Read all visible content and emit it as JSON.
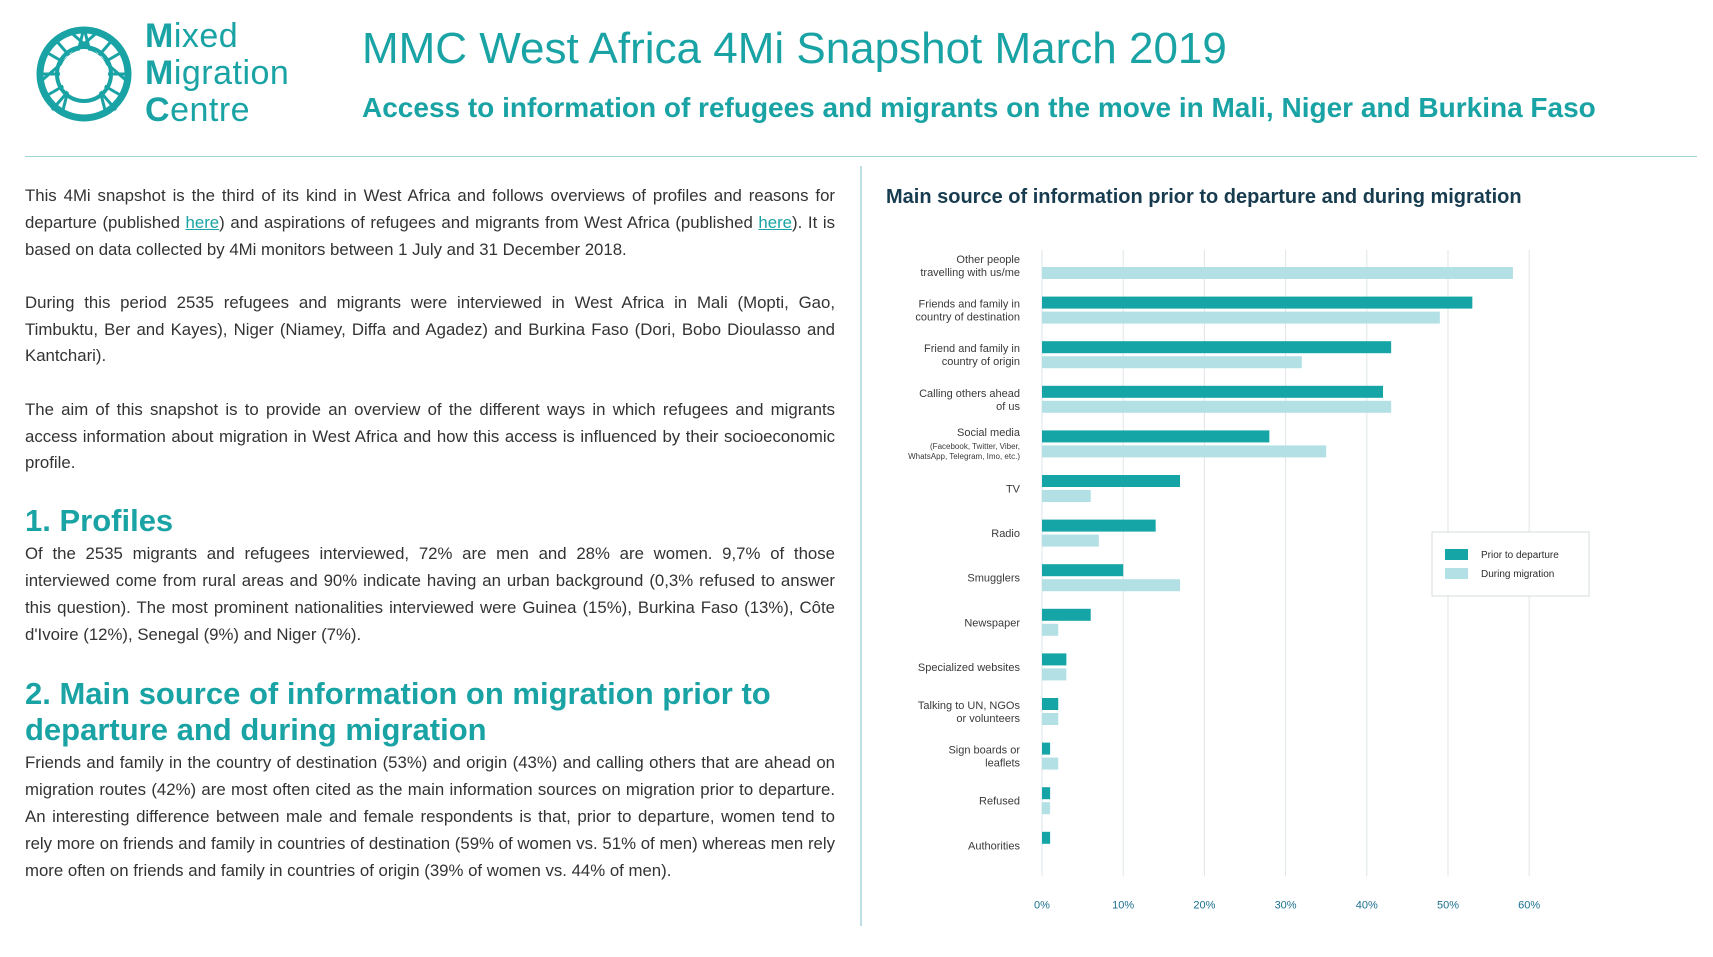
{
  "logo": {
    "line1_initial": "M",
    "line1_rest": "ixed",
    "line2_initial": "M",
    "line2_rest": "igration",
    "line3_initial": "C",
    "line3_rest": "entre",
    "icon": "globe-network-icon"
  },
  "header": {
    "title": "MMC West Africa 4Mi Snapshot March 2019",
    "subtitle": "Access to information of refugees and migrants on the move in Mali, Niger and Burkina Faso"
  },
  "intro": {
    "p1_a": "This 4Mi snapshot is the third of its kind in West Africa and follows overviews of profiles and reasons for departure (published ",
    "p1_link1": "here",
    "p1_b": ") and aspirations of refugees and migrants from West Africa (published ",
    "p1_link2": "here",
    "p1_c": "). It is based on data collected by 4Mi monitors between 1 July and 31 December 2018.",
    "p2": "During this period 2535 refugees and migrants were interviewed in West Africa in Mali (Mopti, Gao, Timbuktu, Ber and Kayes), Niger (Niamey, Diffa and Agadez) and Burkina Faso (Dori, Bobo Dioulasso and Kantchari).",
    "p3": "The aim of this snapshot is to provide an overview of the different ways in which refugees and migrants access information about migration in West Africa and how this access is influenced by their socioeconomic profile."
  },
  "sections": {
    "profiles_heading": "1. Profiles",
    "profiles_text": "Of the 2535 migrants and refugees interviewed, 72% are men and 28% are women. 9,7% of those interviewed come from rural areas and 90% indicate having an urban background (0,3% refused to answer this question). The most prominent nationalities interviewed were Guinea (15%), Burkina Faso (13%), Côte d'Ivoire (12%), Senegal (9%) and Niger (7%).",
    "source_heading": "2. Main source of information on migration prior to departure and during migration",
    "source_text": "Friends and family in the country of destination (53%) and origin (43%) and calling others that are ahead on migration routes (42%) are most often cited as the main information sources on migration prior to departure. An interesting difference between male and female respondents is that, prior to departure, women tend to rely more on friends and family in countries of destination (59% of women vs. 51% of men) whereas men rely more often on friends and family in countries of origin (39% of women vs. 44% of men)."
  },
  "chart_data": {
    "type": "bar",
    "orientation": "horizontal",
    "title": "Main source of information prior to departure and during migration",
    "categories": [
      [
        "Other people",
        "travelling with us/me"
      ],
      [
        "Friends and family in",
        "country of destination"
      ],
      [
        "Friend and family in",
        "country of origin"
      ],
      [
        "Calling others ahead",
        "of us"
      ],
      [
        "Social media"
      ],
      [
        "TV"
      ],
      [
        "Radio"
      ],
      [
        "Smugglers"
      ],
      [
        "Newspaper"
      ],
      [
        "Specialized websites"
      ],
      [
        "Talking to UN, NGOs",
        "or volunteers"
      ],
      [
        "Sign boards or",
        "leaflets"
      ],
      [
        "Refused"
      ],
      [
        "Authorities"
      ]
    ],
    "category_notes": [
      "",
      "",
      "",
      "",
      "(Facebook, Twitter, Viber, WhatsApp, Telegram, Imo, etc.)",
      "",
      "",
      "",
      "",
      "",
      "",
      "",
      "",
      ""
    ],
    "social_media_note_lines": [
      "(Facebook, Twitter, Viber,",
      "WhatsApp, Telegram, Imo, etc.)"
    ],
    "series": [
      {
        "name": "Prior to departure",
        "color": "#15a5a6",
        "values": [
          0,
          53,
          43,
          42,
          28,
          17,
          14,
          10,
          6,
          3,
          2,
          1,
          1,
          1
        ]
      },
      {
        "name": "During migration",
        "color": "#b3e0e5",
        "values": [
          58,
          49,
          32,
          43,
          35,
          6,
          7,
          17,
          2,
          3,
          2,
          2,
          1,
          0
        ]
      }
    ],
    "xlim": [
      0,
      60
    ],
    "xticks": [
      "0%",
      "10%",
      "20%",
      "30%",
      "40%",
      "50%",
      "60%"
    ],
    "grid": true,
    "legend_position": "right"
  }
}
